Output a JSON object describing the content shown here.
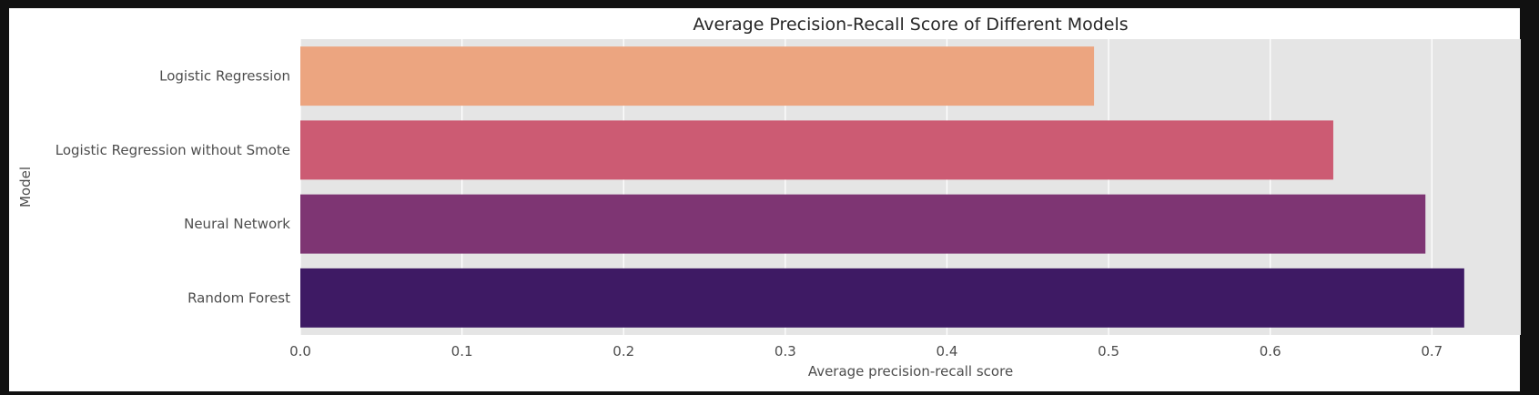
{
  "chart_data": {
    "type": "bar",
    "orientation": "horizontal",
    "title": "Average Precision-Recall Score of Different Models",
    "xlabel": "Average precision-recall score",
    "ylabel": "Model",
    "categories": [
      "Logistic Regression",
      "Logistic Regression without Smote",
      "Neural Network",
      "Random Forest"
    ],
    "values": [
      0.491,
      0.639,
      0.696,
      0.72
    ],
    "colors": [
      "#eca580",
      "#cc5b73",
      "#7e3573",
      "#3e1a64"
    ],
    "xlim": [
      0,
      0.755
    ],
    "xticks": [
      0.0,
      0.1,
      0.2,
      0.3,
      0.4,
      0.5,
      0.6,
      0.7
    ],
    "xtick_labels": [
      "0.0",
      "0.1",
      "0.2",
      "0.3",
      "0.4",
      "0.5",
      "0.6",
      "0.7"
    ],
    "grid": true,
    "background": "#e5e5e5"
  }
}
